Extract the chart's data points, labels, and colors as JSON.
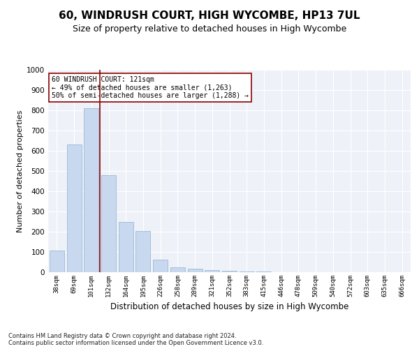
{
  "title1": "60, WINDRUSH COURT, HIGH WYCOMBE, HP13 7UL",
  "title2": "Size of property relative to detached houses in High Wycombe",
  "xlabel": "Distribution of detached houses by size in High Wycombe",
  "ylabel": "Number of detached properties",
  "categories": [
    "38sqm",
    "69sqm",
    "101sqm",
    "132sqm",
    "164sqm",
    "195sqm",
    "226sqm",
    "258sqm",
    "289sqm",
    "321sqm",
    "352sqm",
    "383sqm",
    "415sqm",
    "446sqm",
    "478sqm",
    "509sqm",
    "540sqm",
    "572sqm",
    "603sqm",
    "635sqm",
    "666sqm"
  ],
  "values": [
    107,
    630,
    810,
    480,
    250,
    205,
    62,
    25,
    17,
    11,
    7,
    5,
    3,
    0,
    0,
    0,
    0,
    0,
    0,
    0,
    0
  ],
  "bar_color": "#c8d8ee",
  "bar_edge_color": "#9ab8d8",
  "vline_x": 2.5,
  "vline_color": "#8b0000",
  "annotation_text": "60 WINDRUSH COURT: 121sqm\n← 49% of detached houses are smaller (1,263)\n50% of semi-detached houses are larger (1,288) →",
  "annotation_box_color": "#ffffff",
  "annotation_box_edge": "#8b0000",
  "ylim": [
    0,
    1000
  ],
  "yticks": [
    0,
    100,
    200,
    300,
    400,
    500,
    600,
    700,
    800,
    900,
    1000
  ],
  "footer1": "Contains HM Land Registry data © Crown copyright and database right 2024.",
  "footer2": "Contains public sector information licensed under the Open Government Licence v3.0.",
  "bg_color": "#eef2f8",
  "grid_color": "#ffffff",
  "title1_fontsize": 11,
  "title2_fontsize": 9,
  "xlabel_fontsize": 8.5,
  "ylabel_fontsize": 8,
  "footer_fontsize": 6,
  "annot_fontsize": 7
}
